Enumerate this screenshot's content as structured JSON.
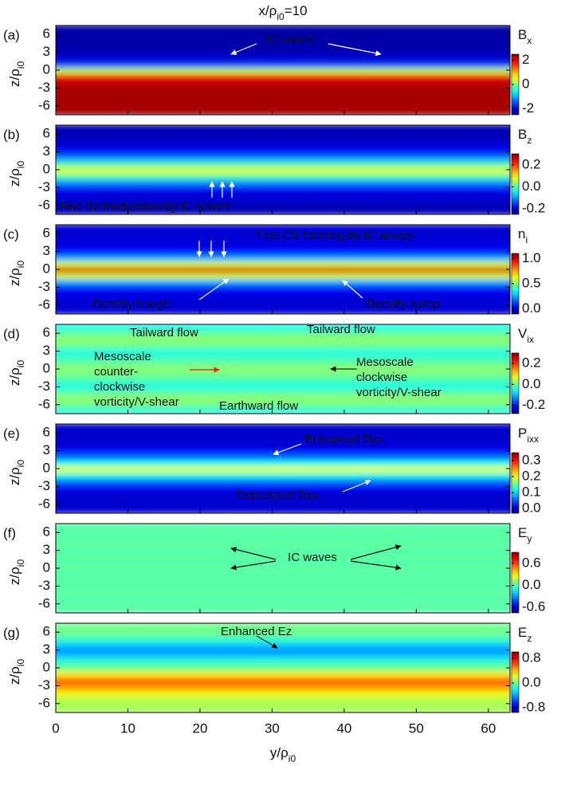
{
  "figure": {
    "title": {
      "base": "x/ρ",
      "sub": "i0",
      "tail": "=10"
    },
    "xlabel": {
      "base": "y/ρ",
      "sub": "i0"
    },
    "xlim": [
      0,
      63
    ],
    "xticks": [
      0,
      10,
      20,
      30,
      40,
      50,
      60
    ]
  },
  "chart_data": [
    {
      "type": "heatmap",
      "panel": "(a)",
      "ylabel": {
        "base": "z/ρ",
        "sub": "i0"
      },
      "colorbar_label": {
        "base": "B",
        "sub": "x"
      },
      "ylim": [
        -7.5,
        7.5
      ],
      "yticks": [
        6,
        3,
        0,
        -3,
        -6
      ],
      "clim": [
        -2.5,
        2.5
      ],
      "cticks": [
        2,
        0,
        -2
      ],
      "z": [
        -7,
        -6,
        -5,
        -4,
        -3,
        -2,
        -1,
        0,
        1,
        2,
        3,
        4,
        5,
        6,
        7
      ],
      "values": [
        2.3,
        2.3,
        2.3,
        2.3,
        2.3,
        2.2,
        1.9,
        0.3,
        -1.6,
        -2.1,
        -2.2,
        -2.3,
        -2.3,
        -2.3,
        -2.3
      ],
      "annotations": [
        {
          "text": "IC waves",
          "color": "#ffffff"
        }
      ]
    },
    {
      "type": "heatmap",
      "panel": "(b)",
      "ylabel": {
        "base": "z/ρ",
        "sub": "i0"
      },
      "colorbar_label": {
        "base": "B",
        "sub": "z"
      },
      "ylim": [
        -7.5,
        7.5
      ],
      "yticks": [
        6,
        3,
        0,
        -3,
        -6
      ],
      "clim": [
        -0.25,
        0.3
      ],
      "cticks": [
        0.2,
        {
          "value": 0,
          "label": "0.0"
        },
        -0.2
      ],
      "z": [
        -7,
        -6,
        -5,
        -4,
        -3,
        -2,
        -1,
        0,
        1,
        2,
        3,
        4,
        5,
        6,
        7
      ],
      "values": [
        -0.22,
        -0.22,
        -0.21,
        -0.2,
        -0.17,
        -0.1,
        0.0,
        0.08,
        0.0,
        -0.1,
        -0.17,
        -0.2,
        -0.21,
        -0.22,
        -0.22
      ],
      "annotations": [
        {
          "text": "Fine Bz modulation by IC waves",
          "color": "#ffffff"
        }
      ]
    },
    {
      "type": "heatmap",
      "panel": "(c)",
      "ylabel": {
        "base": "z/ρ",
        "sub": "i0"
      },
      "colorbar_label": {
        "base": "n",
        "sub": "i"
      },
      "ylim": [
        -7.5,
        7.5
      ],
      "yticks": [
        6,
        3,
        0,
        -3,
        -6
      ],
      "clim": [
        -0.1,
        1.1
      ],
      "cticks": [
        {
          "value": 1,
          "label": "1.0"
        },
        0.5,
        {
          "value": 0,
          "label": "0.0"
        }
      ],
      "z": [
        -7,
        -6,
        -5,
        -4,
        -3,
        -2,
        -1,
        0,
        1,
        2,
        3,
        4,
        5,
        6,
        7
      ],
      "values": [
        0,
        0,
        0,
        0.02,
        0.08,
        0.25,
        0.6,
        1.0,
        0.6,
        0.25,
        0.08,
        0.02,
        0,
        0,
        0
      ],
      "annotations": [
        {
          "text": "Fine CS thinning by IC waves",
          "color": "#ffffff"
        },
        {
          "text": "Density trough",
          "color": "#ffffff"
        },
        {
          "text": "Density hump",
          "color": "#ffffff"
        }
      ]
    },
    {
      "type": "heatmap",
      "panel": "(d)",
      "ylabel": {
        "base": "z/ρ",
        "sub": "i0"
      },
      "colorbar_label": {
        "base": "V",
        "sub": "ix"
      },
      "ylim": [
        -7.5,
        7.5
      ],
      "yticks": [
        6,
        3,
        0,
        -3,
        -6
      ],
      "clim": [
        -0.28,
        0.3
      ],
      "cticks": [
        0.2,
        {
          "value": 0,
          "label": "0.0"
        },
        -0.2
      ],
      "z": [
        -7,
        -6,
        -5,
        -4,
        -3,
        -2,
        -1,
        0,
        1,
        2,
        3,
        4,
        5,
        6,
        7
      ],
      "values": [
        -0.05,
        0.0,
        0.02,
        0.0,
        -0.05,
        -0.03,
        0.0,
        0.02,
        0.0,
        -0.03,
        -0.05,
        0.0,
        0.02,
        0.0,
        -0.05
      ],
      "annotations": [
        {
          "text": "Tailward flow",
          "color": "#222222"
        },
        {
          "text": "Tailward flow",
          "color": "#222222"
        },
        {
          "lines": [
            "Mesoscale",
            "counter-",
            "clockwise",
            "vorticity/V-shear"
          ],
          "color": "#e8200c"
        },
        {
          "lines": [
            "Mesoscale",
            "clockwise",
            "vorticity/V-shear"
          ],
          "color": "#222222"
        },
        {
          "text": "Earthward flow",
          "color": "#222222"
        }
      ]
    },
    {
      "type": "heatmap",
      "panel": "(e)",
      "ylabel": {
        "base": "z/ρ",
        "sub": "i0"
      },
      "colorbar_label": {
        "base": "P",
        "sub": "ixx"
      },
      "ylim": [
        -7.5,
        7.5
      ],
      "yticks": [
        6,
        3,
        0,
        -3,
        -6
      ],
      "clim": [
        -0.03,
        0.35
      ],
      "cticks": [
        0.3,
        0.2,
        0.1,
        {
          "value": 0,
          "label": "0.0"
        }
      ],
      "z": [
        -7,
        -6,
        -5,
        -4,
        -3,
        -2,
        -1,
        0,
        1,
        2,
        3,
        4,
        5,
        6,
        7
      ],
      "values": [
        0,
        0,
        0,
        0,
        0.02,
        0.06,
        0.12,
        0.2,
        0.12,
        0.06,
        0.02,
        0,
        0,
        0,
        0
      ],
      "annotations": [
        {
          "text": "Enhanced Tixx",
          "color": "#ffffff"
        },
        {
          "text": "Depressed Tixx",
          "color": "#ffffff"
        }
      ]
    },
    {
      "type": "heatmap",
      "panel": "(f)",
      "ylabel": {
        "base": "z/ρ",
        "sub": "i0"
      },
      "colorbar_label": {
        "base": "E",
        "sub": "y"
      },
      "ylim": [
        -7.5,
        7.5
      ],
      "yticks": [
        6,
        3,
        0,
        -3,
        -6
      ],
      "clim": [
        -0.75,
        0.9
      ],
      "cticks": [
        0.6,
        {
          "value": 0,
          "label": "0.0"
        },
        -0.6
      ],
      "z": [
        -7,
        -6,
        -5,
        -4,
        -3,
        -2,
        -1,
        0,
        1,
        2,
        3,
        4,
        5,
        6,
        7
      ],
      "values": [
        0.0,
        0.02,
        0.0,
        0.03,
        0.0,
        0.02,
        0.0,
        0.03,
        0.0,
        0.02,
        0.0,
        0.03,
        0.0,
        0.02,
        0.0
      ],
      "annotations": [
        {
          "text": "IC waves",
          "color": "#111111"
        }
      ]
    },
    {
      "type": "heatmap",
      "panel": "(g)",
      "ylabel": {
        "base": "z/ρ",
        "sub": "i0"
      },
      "colorbar_label": {
        "base": "E",
        "sub": "z"
      },
      "ylim": [
        -7.5,
        7.5
      ],
      "yticks": [
        6,
        3,
        0,
        -3,
        -6
      ],
      "clim": [
        -0.95,
        1.0
      ],
      "cticks": [
        0.8,
        {
          "value": 0,
          "label": "0.0"
        },
        -0.8
      ],
      "z": [
        -7,
        -6,
        -5,
        -4,
        -3,
        -2,
        -1,
        0,
        1,
        2,
        3,
        4,
        5,
        6,
        7
      ],
      "values": [
        0.1,
        0.1,
        0.15,
        0.3,
        0.5,
        0.6,
        0.3,
        0.0,
        -0.1,
        -0.3,
        -0.45,
        -0.3,
        -0.1,
        0.0,
        0.0
      ],
      "annotations": [
        {
          "text": "Enhanced Ez",
          "color": "#222222"
        }
      ]
    }
  ]
}
